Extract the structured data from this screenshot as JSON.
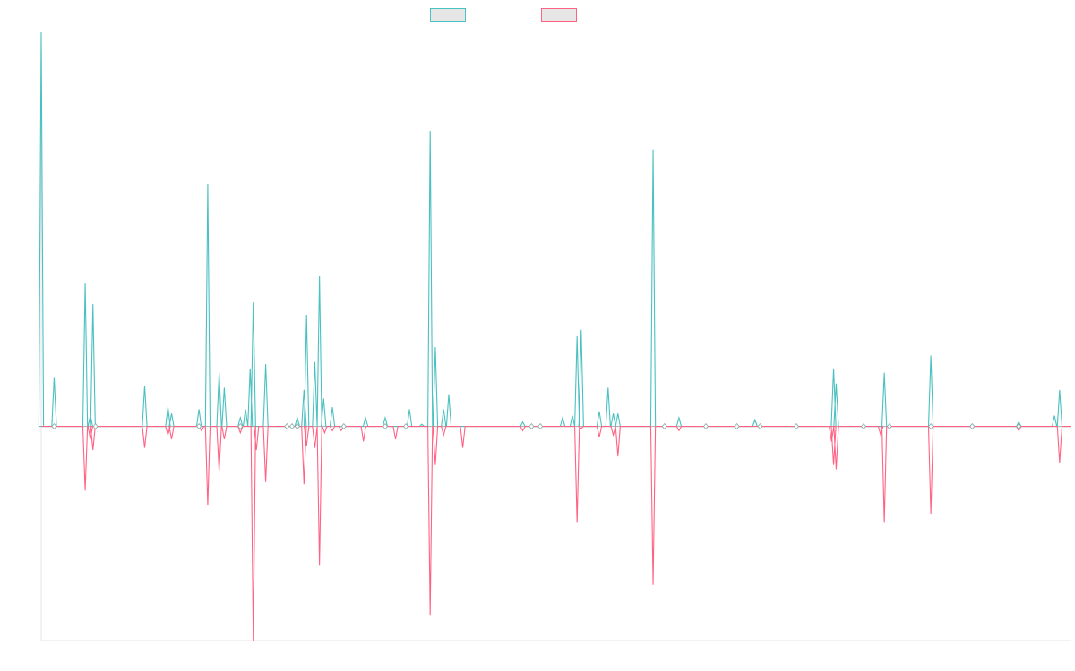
{
  "chart_data": {
    "type": "line",
    "title": "",
    "xlabel": "",
    "ylabel": "",
    "grid": false,
    "legend_position": "top-center",
    "ylim": [
      -1.0,
      1.84
    ],
    "x_count": 200,
    "x_min": 0,
    "x_max": 199,
    "series": [
      {
        "name": "",
        "color": "#4bc0c0",
        "style": "positive-spikes",
        "points": [
          [
            0,
            1.84
          ],
          [
            2.5,
            0.23
          ],
          [
            8.5,
            0.67
          ],
          [
            9.5,
            0.05
          ],
          [
            10,
            0.57
          ],
          [
            20,
            0.19
          ],
          [
            24.5,
            0.09
          ],
          [
            25.2,
            0.06
          ],
          [
            30.5,
            0.08
          ],
          [
            32.2,
            1.13
          ],
          [
            34.4,
            0.25
          ],
          [
            35.4,
            0.18
          ],
          [
            38.5,
            0.04
          ],
          [
            39.5,
            0.08
          ],
          [
            40.4,
            0.27
          ],
          [
            41,
            0.58
          ],
          [
            43.4,
            0.29
          ],
          [
            49.5,
            0.04
          ],
          [
            50.8,
            0.17
          ],
          [
            51.3,
            0.52
          ],
          [
            52.9,
            0.3
          ],
          [
            53.8,
            0.7
          ],
          [
            54.6,
            0.13
          ],
          [
            56.3,
            0.09
          ],
          [
            62.7,
            0.04
          ],
          [
            66.5,
            0.04
          ],
          [
            71.2,
            0.08
          ],
          [
            73.6,
            0.01
          ],
          [
            77.8,
            0.08
          ],
          [
            75.2,
            1.38
          ],
          [
            76.2,
            0.37
          ],
          [
            78.8,
            0.15
          ],
          [
            93.1,
            0.02
          ],
          [
            100.8,
            0.04
          ],
          [
            102.7,
            0.05
          ],
          [
            103.6,
            0.42
          ],
          [
            104.4,
            0.45
          ],
          [
            107.9,
            0.07
          ],
          [
            109.6,
            0.18
          ],
          [
            111.5,
            0.06
          ],
          [
            110.6,
            0.06
          ],
          [
            123.3,
            0.04
          ],
          [
            138,
            0.03
          ],
          [
            153.2,
            0.27
          ],
          [
            153.7,
            0.2
          ],
          [
            163,
            0.25
          ],
          [
            172,
            0.33
          ],
          [
            180,
            0.01
          ],
          [
            189,
            0.02
          ],
          [
            195.9,
            0.05
          ],
          [
            196.9,
            0.17
          ],
          [
            118.3,
            1.29
          ]
        ]
      },
      {
        "name": "",
        "color": "#ff6384",
        "style": "negative-spikes",
        "points": [
          [
            8.5,
            -0.3
          ],
          [
            9.5,
            -0.06
          ],
          [
            10,
            -0.11
          ],
          [
            20,
            -0.1
          ],
          [
            24.5,
            -0.04
          ],
          [
            25.2,
            -0.06
          ],
          [
            31,
            -0.02
          ],
          [
            32.2,
            -0.37
          ],
          [
            34.4,
            -0.21
          ],
          [
            35.4,
            -0.06
          ],
          [
            38.5,
            -0.03
          ],
          [
            41,
            -1.0
          ],
          [
            41.6,
            -0.11
          ],
          [
            43.4,
            -0.26
          ],
          [
            50.8,
            -0.27
          ],
          [
            51.3,
            -0.09
          ],
          [
            52.9,
            -0.1
          ],
          [
            53.8,
            -0.65
          ],
          [
            54.8,
            -0.03
          ],
          [
            56.3,
            -0.02
          ],
          [
            58,
            -0.02
          ],
          [
            68.5,
            -0.06
          ],
          [
            75.2,
            -0.88
          ],
          [
            76.2,
            -0.18
          ],
          [
            77.8,
            -0.04
          ],
          [
            81.5,
            -0.1
          ],
          [
            93.1,
            -0.02
          ],
          [
            103.6,
            -0.45
          ],
          [
            104.4,
            -0.01
          ],
          [
            107.9,
            -0.05
          ],
          [
            111.5,
            -0.14
          ],
          [
            110.6,
            -0.04
          ],
          [
            118.3,
            -0.74
          ],
          [
            123.3,
            -0.02
          ],
          [
            152.8,
            -0.07
          ],
          [
            153.2,
            -0.18
          ],
          [
            153.7,
            -0.2
          ],
          [
            162.3,
            -0.04
          ],
          [
            163,
            -0.45
          ],
          [
            172,
            -0.41
          ],
          [
            180,
            -0.01
          ],
          [
            189,
            -0.02
          ],
          [
            196.9,
            -0.17
          ],
          [
            62.3,
            -0.07
          ]
        ]
      }
    ]
  }
}
